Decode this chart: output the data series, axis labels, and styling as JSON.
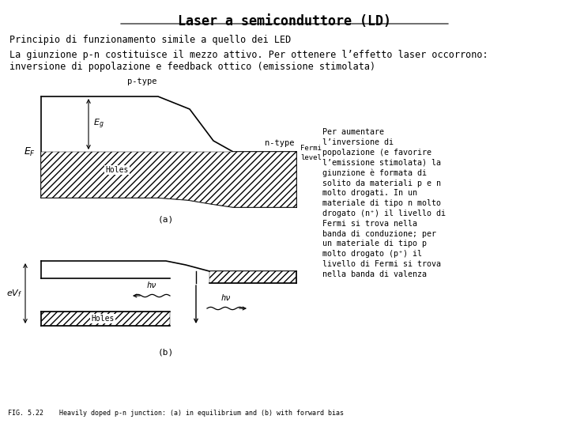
{
  "title": "Laser a semiconduttore (LD)",
  "line1": "Principio di funzionamento simile a quello dei LED",
  "line2a": "La giunzione p-n costituisce il mezzo attivo. Per ottenere l’effetto laser occorrono:",
  "line2b": "inversione di popolazione e feedback ottico (emissione stimolata)",
  "right_text": "Per aumentare\nl’inversione di\npopolazione (e favorire\nl’emissione stimolata) la\ngiunzione è formata di\nsolito da materiali p e n\nmolto drogati. In un\nmateriale di tipo n molto\ndrogato (n⁺) il livello di\nFermi si trova nella\nbanda di conduzione; per\nun materiale di tipo p\nmolto drogato (p⁺) il\nlivello di Fermi si trova\nnella banda di valenza",
  "fig_caption": "FIG. 5.22    Heavily doped p-n junction: (a) in equilibrium and (b) with forward bias",
  "bg_color": "#ffffff"
}
